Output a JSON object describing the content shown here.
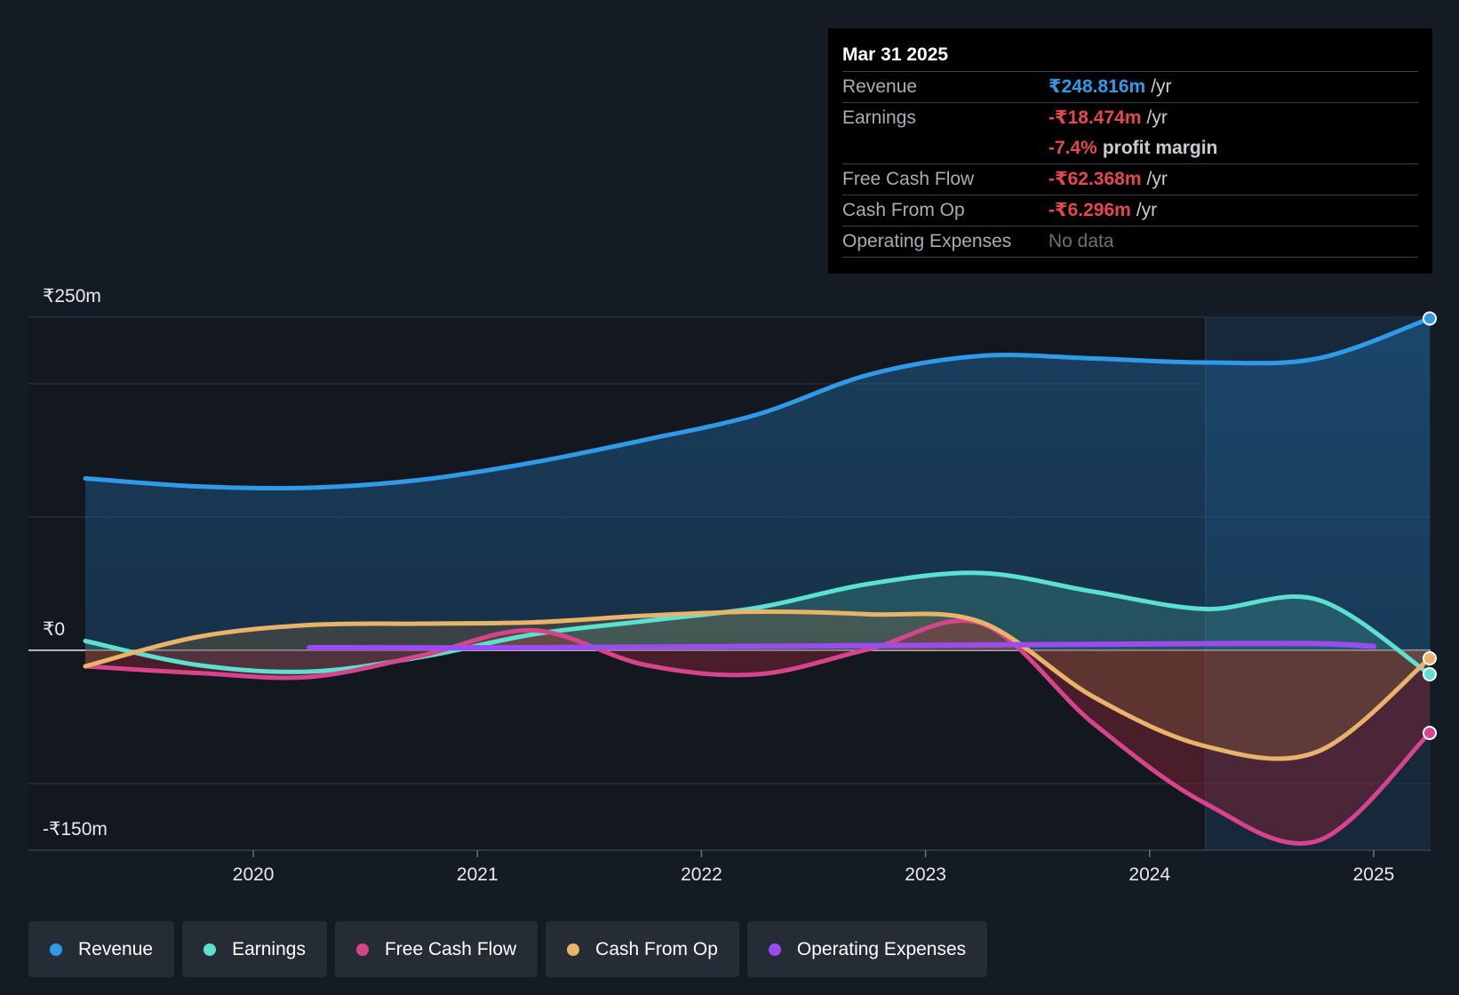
{
  "chart_data": {
    "type": "line",
    "y_axis_labels": [
      "₹250m",
      "₹0",
      "-₹150m"
    ],
    "ylim": [
      -150,
      250
    ],
    "x_tick_labels": [
      "2020",
      "2021",
      "2022",
      "2023",
      "2024",
      "2025"
    ],
    "xlim": [
      2019.25,
      2025.25
    ],
    "highlight_start": 2024.25,
    "series": [
      {
        "name": "Revenue",
        "color": "#2f9be8",
        "x": [
          2019.25,
          2019.75,
          2020.25,
          2020.75,
          2021.25,
          2021.75,
          2022.25,
          2022.75,
          2023.25,
          2023.75,
          2024.25,
          2024.75,
          2025.25
        ],
        "values": [
          129,
          123,
          122,
          128,
          141,
          158,
          177,
          207,
          221,
          219,
          216,
          219,
          249
        ]
      },
      {
        "name": "Earnings",
        "color": "#5ce0cf",
        "x": [
          2019.25,
          2019.75,
          2020.25,
          2020.75,
          2021.25,
          2021.75,
          2022.25,
          2022.75,
          2023.25,
          2023.75,
          2024.25,
          2024.75,
          2025.25
        ],
        "values": [
          7,
          -11,
          -16,
          -5,
          12,
          22,
          32,
          50,
          58,
          44,
          31,
          38,
          -18
        ]
      },
      {
        "name": "Free Cash Flow",
        "color": "#d6458b",
        "x": [
          2019.25,
          2019.75,
          2020.25,
          2020.75,
          2021.25,
          2021.75,
          2022.25,
          2022.75,
          2023.25,
          2023.75,
          2024.25,
          2024.75,
          2025.25
        ],
        "values": [
          -12,
          -17,
          -20,
          -4,
          15,
          -11,
          -18,
          1,
          20,
          -55,
          -115,
          -143,
          -62
        ]
      },
      {
        "name": "Cash From Op",
        "color": "#e8b46a",
        "x": [
          2019.25,
          2019.75,
          2020.25,
          2020.75,
          2021.25,
          2021.75,
          2022.25,
          2022.75,
          2023.25,
          2023.75,
          2024.25,
          2024.75,
          2025.25
        ],
        "values": [
          -12,
          10,
          19,
          20,
          21,
          26,
          29,
          27,
          21,
          -35,
          -72,
          -76,
          -6
        ]
      },
      {
        "name": "Operating Expenses",
        "color": "#9a4cf0",
        "x": [
          2020.25,
          2021.25,
          2022.25,
          2023.25,
          2024.25,
          2024.75,
          2025.0
        ],
        "values": [
          2,
          2,
          3,
          4,
          5,
          5,
          3
        ]
      }
    ]
  },
  "tooltip": {
    "date": "Mar 31 2025",
    "revenue_label": "Revenue",
    "revenue_value": "₹248.816m",
    "revenue_unit": "/yr",
    "earnings_label": "Earnings",
    "earnings_value": "-₹18.474m",
    "earnings_unit": "/yr",
    "margin_value": "-7.4%",
    "margin_text": "profit margin",
    "fcf_label": "Free Cash Flow",
    "fcf_value": "-₹62.368m",
    "fcf_unit": "/yr",
    "cfo_label": "Cash From Op",
    "cfo_value": "-₹6.296m",
    "cfo_unit": "/yr",
    "opex_label": "Operating Expenses",
    "opex_value": "No data"
  },
  "legend": {
    "items": [
      {
        "label": "Revenue",
        "color": "#2f9be8"
      },
      {
        "label": "Earnings",
        "color": "#5ce0cf"
      },
      {
        "label": "Free Cash Flow",
        "color": "#d6458b"
      },
      {
        "label": "Cash From Op",
        "color": "#e8b46a"
      },
      {
        "label": "Operating Expenses",
        "color": "#9a4cf0"
      }
    ]
  }
}
